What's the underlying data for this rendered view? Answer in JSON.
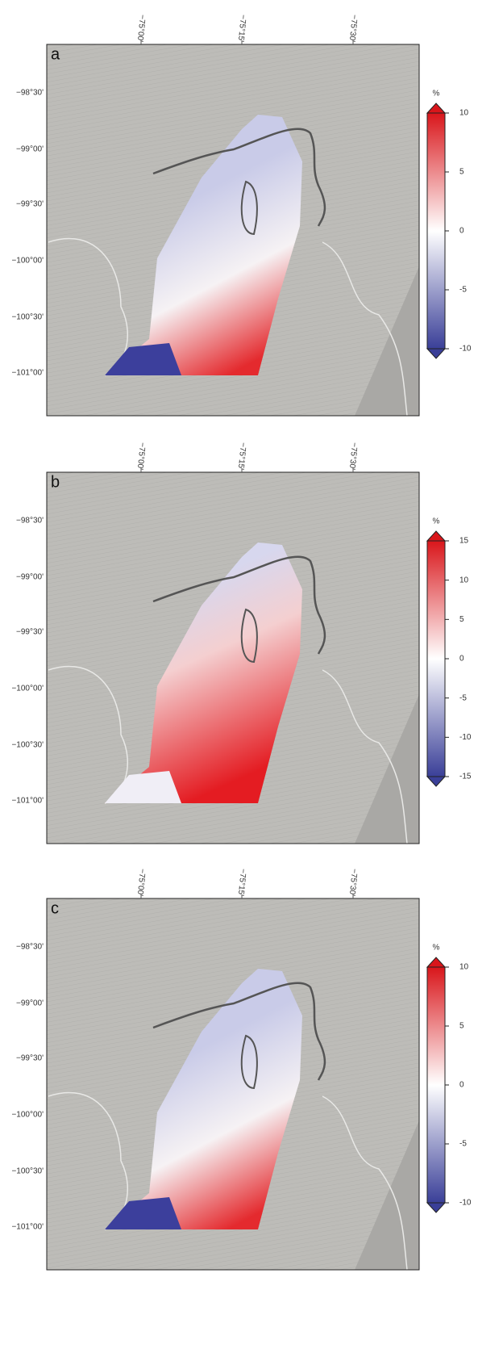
{
  "panels": [
    {
      "label": "a",
      "lon_labels": [
        "−75°00'",
        "−75°15'",
        "−75°30'"
      ],
      "lat_labels": [
        "−98°30'",
        "−99°00'",
        "−99°30'",
        "−100°00'",
        "−100°30'",
        "−101°00'"
      ],
      "colorbar": {
        "unit": "%",
        "lim": [
          -10,
          10
        ],
        "ticks": [
          -10,
          -5,
          0,
          5,
          10
        ]
      }
    },
    {
      "label": "b",
      "lon_labels": [
        "−75°00'",
        "−75°15'",
        "−75°30'"
      ],
      "lat_labels": [
        "−98°30'",
        "−99°00'",
        "−99°30'",
        "−100°00'",
        "−100°30'",
        "−101°00'"
      ],
      "colorbar": {
        "unit": "%",
        "lim": [
          -15,
          15
        ],
        "ticks": [
          -15,
          -10,
          -5,
          0,
          5,
          10,
          15
        ]
      }
    },
    {
      "label": "c",
      "lon_labels": [
        "−75°00'",
        "−75°15'",
        "−75°30'"
      ],
      "lat_labels": [
        "−98°30'",
        "−99°00'",
        "−99°30'",
        "−100°00'",
        "−100°30'",
        "−101°00'"
      ],
      "colorbar": {
        "unit": "%",
        "lim": [
          -10,
          10
        ],
        "ticks": [
          -10,
          -5,
          0,
          5,
          10
        ]
      }
    }
  ]
}
